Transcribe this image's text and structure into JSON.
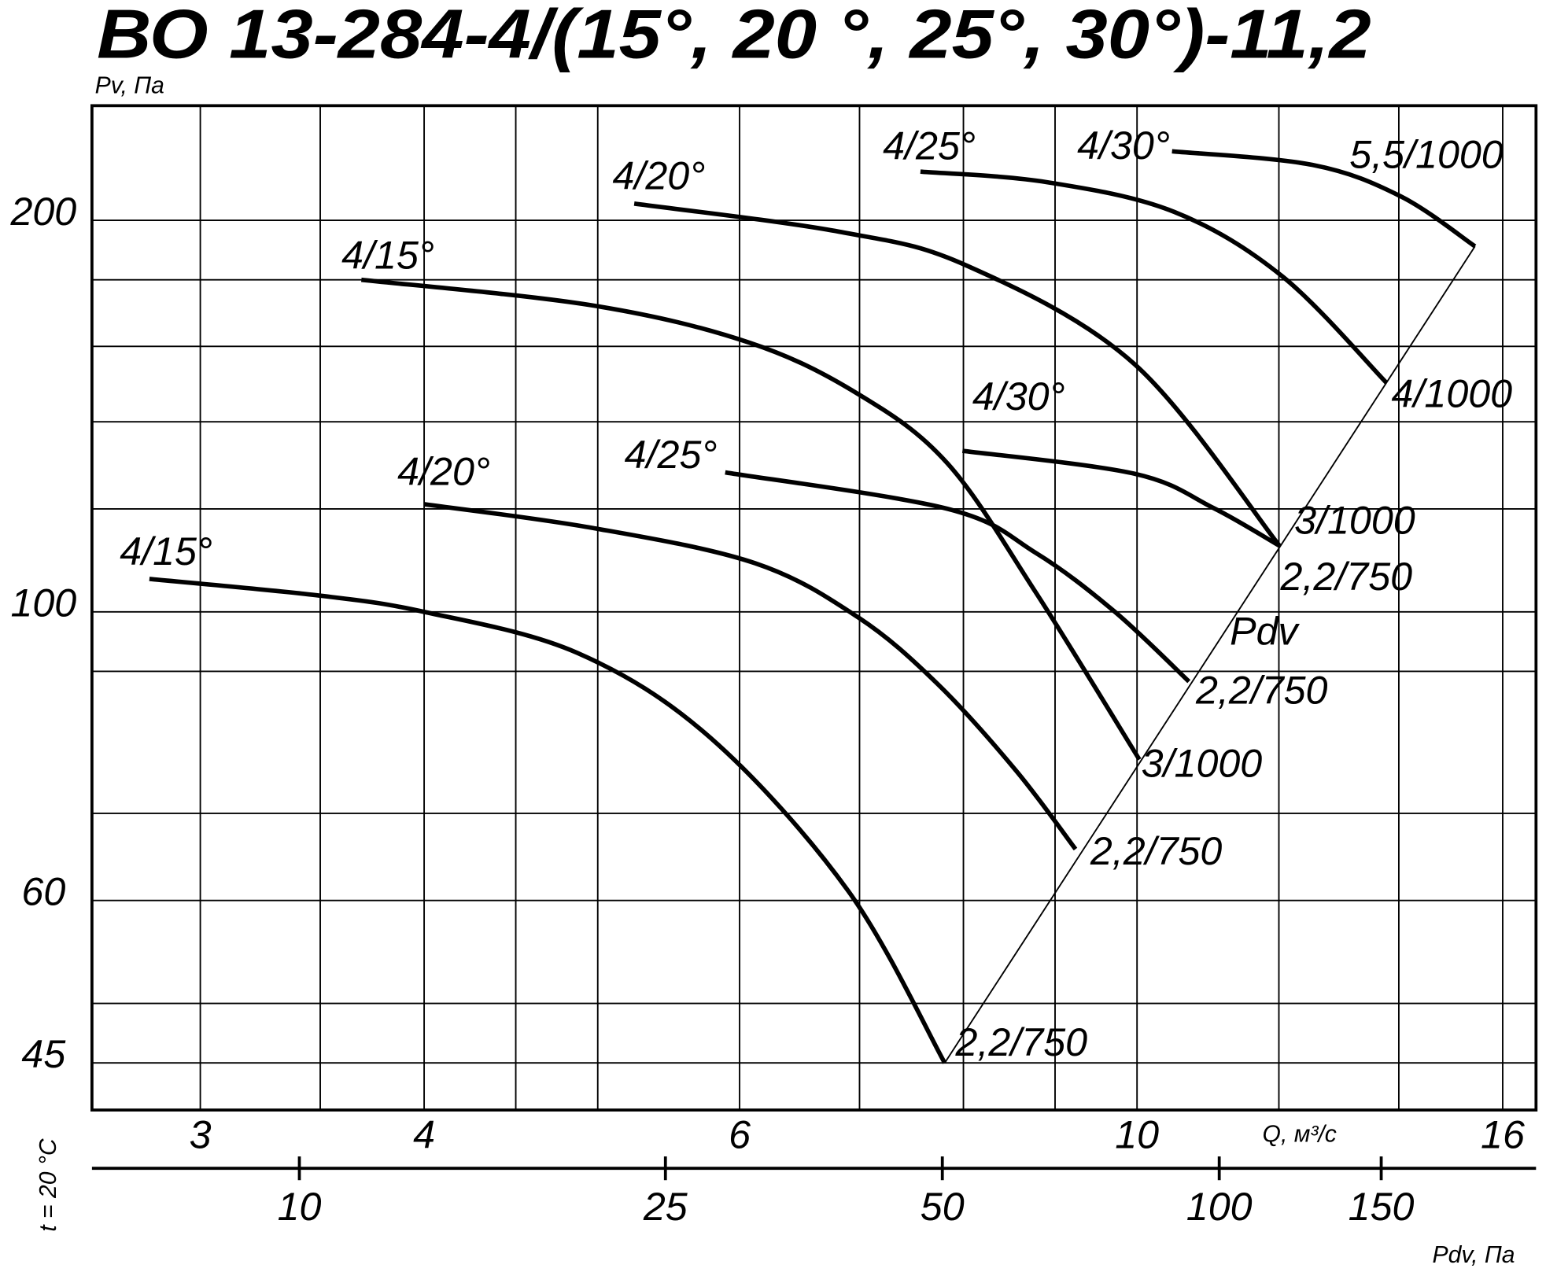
{
  "chart_data": {
    "type": "line",
    "title": "ВО 13-284-4/(15°, 20 °, 25°, 30°)-11,2",
    "y_label": "Pv, Па",
    "x_label": "Q, м³/с",
    "x2_label": "Pdv, Па",
    "side_label": "t = 20 °C",
    "pdv_label": "Pdv",
    "xscale": "log",
    "yscale": "log",
    "x2scale": "log",
    "xlim": [
      2.61,
      16.7
    ],
    "ylim": [
      41.4,
      245
    ],
    "x2lim": [
      5.95,
      221
    ],
    "xticks": [
      3,
      4,
      6,
      10,
      16
    ],
    "xgrid": [
      3,
      3.5,
      4,
      4.5,
      5,
      6,
      7,
      8,
      9,
      10,
      12,
      14,
      16
    ],
    "yticks": [
      200,
      100,
      60,
      45
    ],
    "ygrid": [
      200,
      180,
      160,
      140,
      120,
      100,
      90,
      70,
      60,
      50,
      45
    ],
    "x2ticks": [
      10,
      25,
      50,
      100,
      150
    ],
    "grid": true,
    "color": "#000000",
    "series": [
      {
        "name": "4/15°",
        "end_label": "2,2/750",
        "x": [
          2.81,
          3.48,
          4.0,
          4.87,
          5.78,
          6.9,
          7.81
        ],
        "values": [
          106,
          103,
          100,
          93,
          80,
          61,
          45
        ]
      },
      {
        "name": "4/20°",
        "end_label": "2,2/750",
        "x": [
          4.0,
          4.97,
          6.12,
          6.99,
          7.74,
          8.56,
          9.24
        ],
        "values": [
          121,
          116,
          109,
          99,
          88,
          75.5,
          65.7
        ]
      },
      {
        "name": "4/15°",
        "end_label": "3/1000",
        "x": [
          3.69,
          4.97,
          6.08,
          6.99,
          7.84,
          8.78,
          10.03
        ],
        "values": [
          180,
          172,
          161,
          147,
          130,
          103.5,
          77
        ]
      },
      {
        "name": "4/25°",
        "end_label": "2,2/750",
        "x": [
          5.89,
          7.84,
          8.78,
          9.72,
          10.69
        ],
        "values": [
          128,
          120,
          111,
          100,
          88.4
        ]
      },
      {
        "name": "4/20°",
        "end_label": "3/1000",
        "x": [
          5.24,
          6.82,
          8.04,
          9.97,
          12.01
        ],
        "values": [
          206,
          196,
          184.5,
          155,
          112.4
        ]
      },
      {
        "name": "4/30°",
        "end_label": "2,2/750",
        "x": [
          7.99,
          9.97,
          11.03,
          12.01
        ],
        "values": [
          133,
          127.7,
          120.2,
          112.4
        ]
      },
      {
        "name": "4/25°",
        "end_label": "4/1000",
        "x": [
          7.57,
          8.9,
          10.49,
          12.06,
          13.78
        ],
        "values": [
          218,
          214,
          203,
          181,
          150
        ]
      },
      {
        "name": "4/30°",
        "end_label": "5,5/1000",
        "x": [
          10.46,
          12.53,
          14.04,
          15.44
        ],
        "values": [
          226,
          220.6,
          208.6,
          191
        ]
      }
    ]
  }
}
